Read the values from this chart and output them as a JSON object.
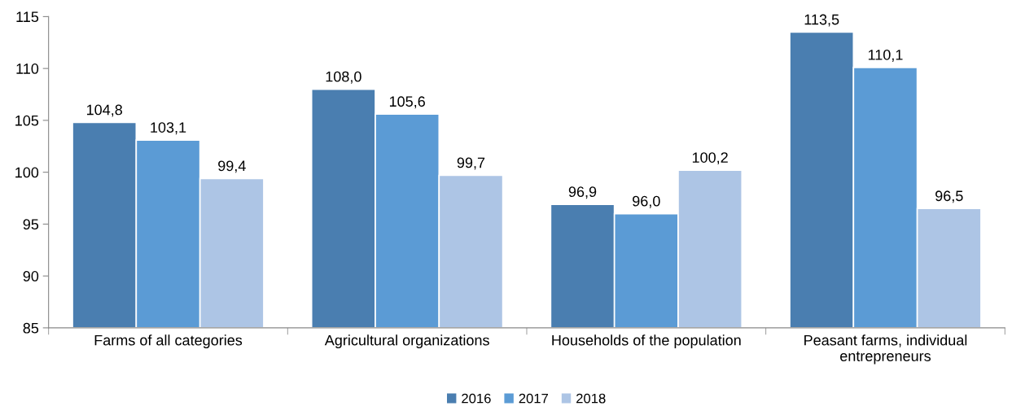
{
  "chart_data": {
    "type": "bar",
    "categories": [
      "Farms of all categories",
      "Agricultural organizations",
      "Households of the population",
      "Peasant farms, individual\nentrepreneurs"
    ],
    "series": [
      {
        "name": "2016",
        "color": "#4a7eb0",
        "values": [
          104.8,
          108.0,
          96.9,
          113.5
        ],
        "value_labels": [
          "104,8",
          "108,0",
          "96,9",
          "113,5"
        ]
      },
      {
        "name": "2017",
        "color": "#5b9bd5",
        "values": [
          103.1,
          105.6,
          96.0,
          110.1
        ],
        "value_labels": [
          "103,1",
          "105,6",
          "96,0",
          "110,1"
        ]
      },
      {
        "name": "2018",
        "color": "#adc5e5",
        "values": [
          99.4,
          99.7,
          100.2,
          96.5
        ],
        "value_labels": [
          "99,4",
          "99,7",
          "100,2",
          "96,5"
        ]
      }
    ],
    "ylim": [
      85,
      115
    ],
    "yticks": [
      85,
      90,
      95,
      100,
      105,
      110,
      115
    ],
    "grid": false,
    "legend": "bottom"
  }
}
